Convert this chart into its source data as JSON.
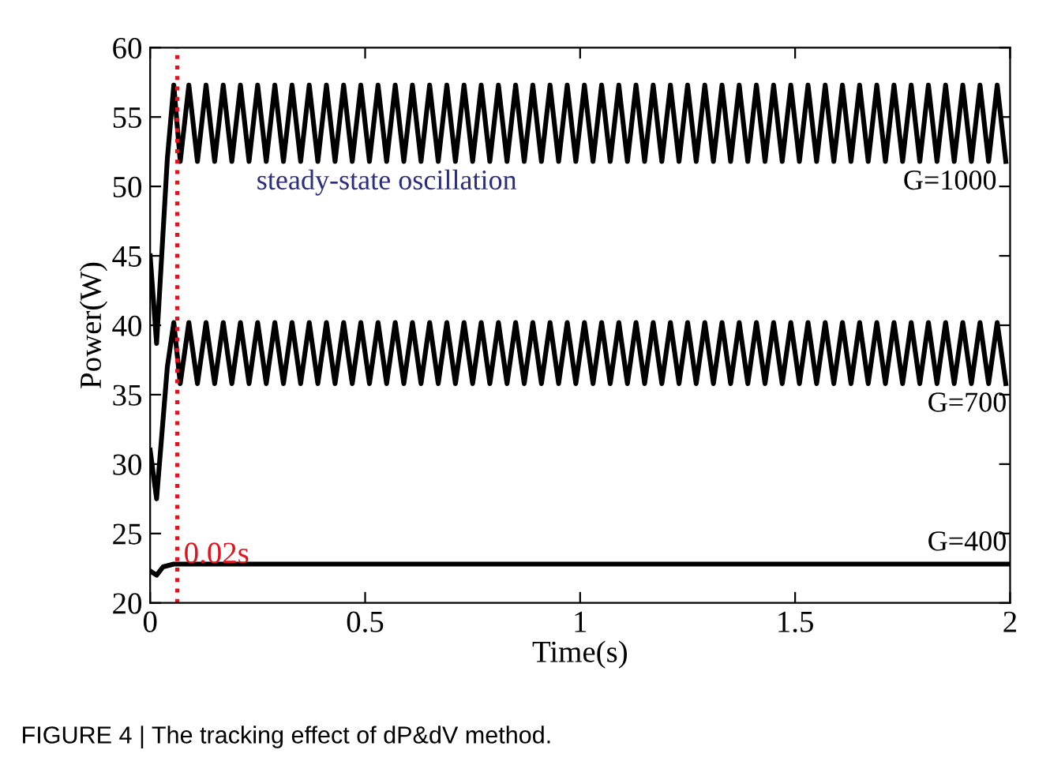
{
  "chart_data": {
    "type": "line",
    "xlabel": "Time(s)",
    "ylabel": "Power(W)",
    "x": [
      0,
      0.015,
      0.04,
      0.055,
      0.07,
      0.09,
      0.11,
      0.13,
      0.15,
      0.17,
      0.19,
      0.21,
      0.23,
      0.25,
      0.27,
      0.29,
      0.31,
      0.33,
      0.35,
      0.37,
      0.39,
      0.41,
      0.43,
      0.45,
      0.47,
      0.49,
      0.51,
      0.53,
      0.55,
      0.57,
      0.59,
      0.61,
      0.63,
      0.65,
      0.67,
      0.69,
      0.71,
      0.73,
      0.75,
      0.77,
      0.79,
      0.81,
      0.83,
      0.85,
      0.87,
      0.89,
      0.91,
      0.93,
      0.95,
      0.97,
      0.99,
      1.01,
      1.03,
      1.05,
      1.07,
      1.09,
      1.11,
      1.13,
      1.15,
      1.17,
      1.19,
      1.21,
      1.23,
      1.25,
      1.27,
      1.29,
      1.31,
      1.33,
      1.35,
      1.37,
      1.39,
      1.41,
      1.43,
      1.45,
      1.47,
      1.49,
      1.51,
      1.53,
      1.55,
      1.57,
      1.59,
      1.61,
      1.63,
      1.65,
      1.67,
      1.69,
      1.71,
      1.73,
      1.75,
      1.77,
      1.79,
      1.81,
      1.83,
      1.85,
      1.87,
      1.89,
      1.91,
      1.93,
      1.95,
      1.97,
      1.99
    ],
    "series": [
      {
        "color": "#000000",
        "values": [
          45,
          38.7,
          52,
          57.3,
          51.8,
          57.3,
          51.8,
          57.3,
          51.8,
          57.3,
          51.8,
          57.3,
          51.8,
          57.3,
          51.8,
          57.3,
          51.8,
          57.3,
          51.8,
          57.3,
          51.8,
          57.3,
          51.8,
          57.3,
          51.8,
          57.3,
          51.8,
          57.3,
          51.8,
          57.3,
          51.8,
          57.3,
          51.8,
          57.3,
          51.8,
          57.3,
          51.8,
          57.3,
          51.8,
          57.3,
          51.8,
          57.3,
          51.8,
          57.3,
          51.8,
          57.3,
          51.8,
          57.3,
          51.8,
          57.3,
          51.8,
          57.3,
          51.8,
          57.3,
          51.8,
          57.3,
          51.8,
          57.3,
          51.8,
          57.3,
          51.8,
          57.3,
          51.8,
          57.3,
          51.8,
          57.3,
          51.8,
          57.3,
          51.8,
          57.3,
          51.8,
          57.3,
          51.8,
          57.3,
          51.8,
          57.3,
          51.8,
          57.3,
          51.8,
          57.3,
          51.8,
          57.3,
          51.8,
          57.3,
          51.8,
          57.3,
          51.8,
          57.3,
          51.8,
          57.3,
          51.8,
          57.3,
          51.8,
          57.3,
          51.8,
          57.3,
          51.8,
          57.3,
          51.8,
          57.3,
          51.8
        ]
      },
      {
        "color": "#000000",
        "values": [
          31,
          27.5,
          37,
          40.2,
          35.8,
          40.2,
          35.8,
          40.2,
          35.8,
          40.2,
          35.8,
          40.2,
          35.8,
          40.2,
          35.8,
          40.2,
          35.8,
          40.2,
          35.8,
          40.2,
          35.8,
          40.2,
          35.8,
          40.2,
          35.8,
          40.2,
          35.8,
          40.2,
          35.8,
          40.2,
          35.8,
          40.2,
          35.8,
          40.2,
          35.8,
          40.2,
          35.8,
          40.2,
          35.8,
          40.2,
          35.8,
          40.2,
          35.8,
          40.2,
          35.8,
          40.2,
          35.8,
          40.2,
          35.8,
          40.2,
          35.8,
          40.2,
          35.8,
          40.2,
          35.8,
          40.2,
          35.8,
          40.2,
          35.8,
          40.2,
          35.8,
          40.2,
          35.8,
          40.2,
          35.8,
          40.2,
          35.8,
          40.2,
          35.8,
          40.2,
          35.8,
          40.2,
          35.8,
          40.2,
          35.8,
          40.2,
          35.8,
          40.2,
          35.8,
          40.2,
          35.8,
          40.2,
          35.8,
          40.2,
          35.8,
          40.2,
          35.8,
          40.2,
          35.8,
          40.2,
          35.8,
          40.2,
          35.8,
          40.2,
          35.8,
          40.2,
          35.8,
          40.2,
          35.8,
          40.2,
          35.8
        ]
      },
      {
        "color": "#000000",
        "x": [
          0,
          0.015,
          0.03,
          0.055,
          2
        ],
        "values": [
          22.3,
          22.0,
          22.6,
          22.8,
          22.8
        ]
      }
    ],
    "xlim": [
      0,
      2
    ],
    "ylim": [
      20,
      60
    ],
    "xticks": [
      0,
      0.5,
      1,
      1.5,
      2
    ],
    "yticks": [
      20,
      25,
      30,
      35,
      40,
      45,
      50,
      55,
      60
    ],
    "ref_lines": [
      {
        "axis": "x",
        "value": 0.063,
        "label": "0.02s",
        "color": "#e0141e",
        "line_style": "dotted"
      }
    ],
    "annotations": [
      "steady-state oscillation",
      "G=1000",
      "G=700",
      "G=400",
      "FIGURE 4 | The tracking effect of dP&dV method."
    ],
    "grid": false,
    "legend": false,
    "marker": "none",
    "line_style": "solid"
  }
}
